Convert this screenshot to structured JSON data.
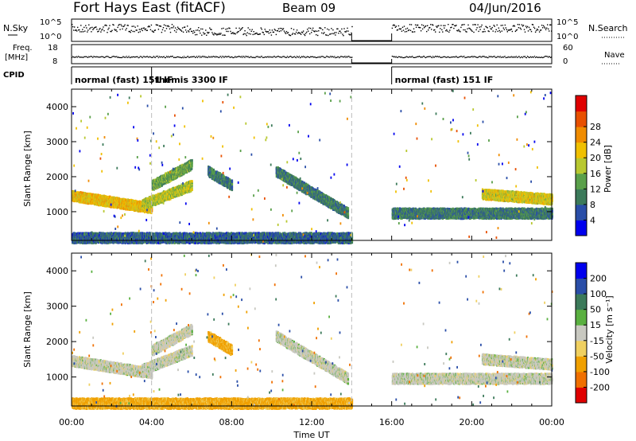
{
  "header": {
    "radar": "Fort Hays East (fitACF)",
    "beam": "Beam 09",
    "date": "04/Jun/2016"
  },
  "panels_top": {
    "nsky_label": "N.Sky",
    "nsky_ticks": [
      "10^5",
      "10^0"
    ],
    "nsearch_label": "N.Search",
    "nsearch_ticks": [
      "10^5",
      "10^0"
    ],
    "freq_label": "Freq.",
    "freq_unit": "[MHz]",
    "freq_ticks": [
      "18",
      "8"
    ],
    "nave_label": "Nave",
    "nave_ticks": [
      "60",
      "0"
    ],
    "cpid_label": "CPID",
    "cpid_segments": [
      {
        "label": "normal (fast) 151 IF",
        "start": 0,
        "end": 4
      },
      {
        "label": "themis 3300 IF",
        "start": 4,
        "end": 14
      },
      {
        "label": "normal (fast) 151 IF",
        "start": 16,
        "end": 24
      }
    ]
  },
  "chart_data": [
    {
      "type": "heatmap",
      "title": "",
      "xlabel": "",
      "ylabel": "Slant Range [km]",
      "xlim": [
        0,
        24
      ],
      "ylim": [
        180,
        4500
      ],
      "yticks": [
        "1000",
        "2000",
        "3000",
        "4000"
      ],
      "data_gap_hours": [
        14,
        16
      ],
      "colorbar": {
        "label": "Power [dB]",
        "ticks": [
          "4",
          "8",
          "12",
          "16",
          "20",
          "24",
          "28"
        ],
        "colors": [
          "#0000ee",
          "#2a4ea8",
          "#3c7a5a",
          "#5aa04a",
          "#b8c830",
          "#f0c000",
          "#f08c00",
          "#e85000",
          "#e00000"
        ]
      },
      "echo_bands": [
        {
          "t_start": 0.0,
          "t_end": 4.0,
          "range_start": 1500,
          "range_end": 1150,
          "power_db": 22
        },
        {
          "t_start": 3.5,
          "t_end": 6.0,
          "range_start": 1250,
          "range_end": 1800,
          "power_db": 18
        },
        {
          "t_start": 4.0,
          "t_end": 6.0,
          "range_start": 1800,
          "range_end": 2400,
          "power_db": 14
        },
        {
          "t_start": 6.8,
          "t_end": 8.0,
          "range_start": 2200,
          "range_end": 1800,
          "power_db": 10
        },
        {
          "t_start": 10.2,
          "t_end": 13.8,
          "range_start": 2200,
          "range_end": 1000,
          "power_db": 10
        },
        {
          "t_start": 0.0,
          "t_end": 14.0,
          "range_start": 300,
          "range_end": 300,
          "power_db": 8
        },
        {
          "t_start": 16.0,
          "t_end": 24.0,
          "range_start": 1000,
          "range_end": 1000,
          "power_db": 10
        },
        {
          "t_start": 20.5,
          "t_end": 24.0,
          "range_start": 1550,
          "range_end": 1400,
          "power_db": 20
        }
      ]
    },
    {
      "type": "heatmap",
      "title": "",
      "xlabel": "Time UT",
      "ylabel": "Slant Range [km]",
      "xlim": [
        0,
        24
      ],
      "ylim": [
        180,
        4500
      ],
      "xticks": [
        "00:00",
        "04:00",
        "08:00",
        "12:00",
        "16:00",
        "20:00",
        "00:00"
      ],
      "yticks": [
        "1000",
        "2000",
        "3000",
        "4000"
      ],
      "data_gap_hours": [
        14,
        16
      ],
      "colorbar": {
        "label": "Velocity [m s⁻¹]",
        "ticks": [
          "-200",
          "-100",
          "-50",
          "-15",
          "15",
          "50",
          "100",
          "200"
        ],
        "colors": [
          "#e00000",
          "#f07000",
          "#f0a000",
          "#f0d060",
          "#c8c8c0",
          "#5ab040",
          "#3c7a5a",
          "#2a4ea8",
          "#0000ee"
        ]
      },
      "echo_bands": [
        {
          "t_start": 0.0,
          "t_end": 4.0,
          "range_start": 1500,
          "range_end": 1150,
          "velocity": 0
        },
        {
          "t_start": 3.5,
          "t_end": 6.0,
          "range_start": 1250,
          "range_end": 1800,
          "velocity": 0
        },
        {
          "t_start": 4.0,
          "t_end": 6.0,
          "range_start": 1800,
          "range_end": 2400,
          "velocity": 0
        },
        {
          "t_start": 6.8,
          "t_end": 8.0,
          "range_start": 2200,
          "range_end": 1800,
          "velocity": -60
        },
        {
          "t_start": 10.2,
          "t_end": 13.8,
          "range_start": 2200,
          "range_end": 1000,
          "velocity": 0
        },
        {
          "t_start": 0.0,
          "t_end": 14.0,
          "range_start": 300,
          "range_end": 300,
          "velocity": -60
        },
        {
          "t_start": 16.0,
          "t_end": 24.0,
          "range_start": 1000,
          "range_end": 1000,
          "velocity": 0
        },
        {
          "t_start": 20.5,
          "t_end": 24.0,
          "range_start": 1550,
          "range_end": 1400,
          "velocity": 0
        }
      ]
    }
  ]
}
